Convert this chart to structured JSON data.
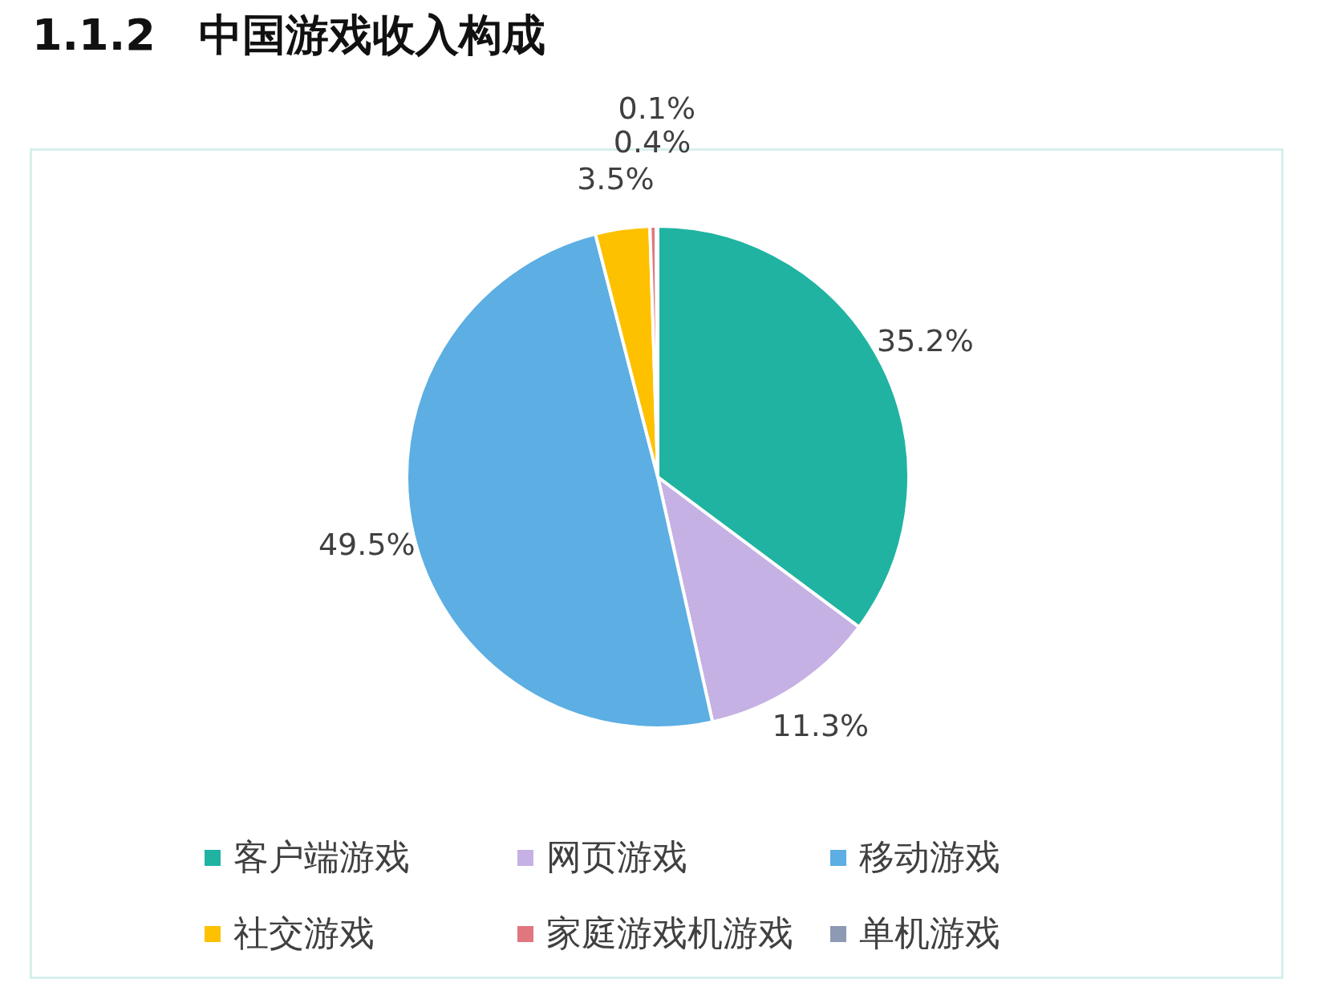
{
  "chart_data": {
    "type": "pie",
    "title": "1.1.2　中国游戏收入构成",
    "categories": [
      "客户端游戏",
      "网页游戏",
      "移动游戏",
      "社交游戏",
      "家庭游戏机游戏",
      "单机游戏"
    ],
    "values": [
      35.2,
      11.3,
      49.5,
      3.5,
      0.4,
      0.1
    ],
    "colors": [
      "#20b3a1",
      "#c5b1e4",
      "#5caee3",
      "#fdc100",
      "#e0777e",
      "#8d9ab3"
    ],
    "value_labels": [
      "35.2%",
      "11.3%",
      "49.5%",
      "3.5%",
      "0.4%",
      "0.1%"
    ],
    "legend": "bottom"
  }
}
